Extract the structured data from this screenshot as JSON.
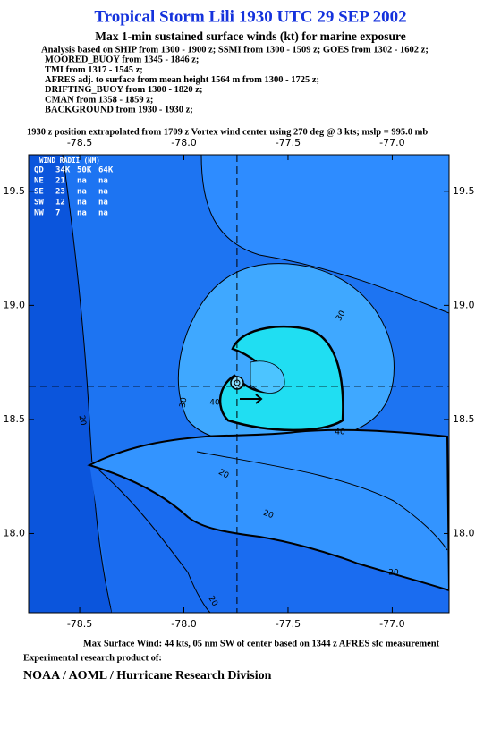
{
  "header": {
    "title": "Tropical Storm Lili 1930 UTC 29 SEP 2002",
    "subtitle": "Max 1-min sustained surface winds (kt) for marine exposure",
    "analysis": [
      "Analysis based on  SHIP from 1300 - 1900 z;  SSMI from 1300 - 1509 z;  GOES from 1302 - 1602 z;",
      "MOORED_BUOY from 1345 - 1846 z;",
      "TMI from 1317 - 1545 z;",
      "AFRES adj. to surface from mean height 1564 m from 1300 - 1725 z;",
      "DRIFTING_BUOY from 1300 - 1820 z;",
      "CMAN from 1358 - 1859 z;",
      "BACKGROUND from 1930 - 1930 z;"
    ],
    "position_note": "1930 z position extrapolated from 1709 z Vortex wind center using 270 deg @ 3 kts; mslp = 995.0 mb"
  },
  "map": {
    "xlim": [
      -78.745,
      -76.727
    ],
    "ylim": [
      17.653,
      19.66
    ],
    "xticks": [
      -78.5,
      {
        "value": -78,
        "label": "-78.0"
      },
      -77.5,
      {
        "value": -77,
        "label": "-77.0"
      }
    ],
    "yticks": [
      19.5,
      {
        "value": 19,
        "label": "19.0"
      },
      18.5,
      {
        "value": 18,
        "label": "18.0"
      }
    ],
    "center": {
      "lon": -77.745,
      "lat": 18.645
    },
    "contour_labels": [
      30,
      30,
      40,
      40,
      20,
      20,
      20,
      20,
      20
    ]
  },
  "wind_radii": {
    "title": "WIND RADII (NM)",
    "header": [
      "QD",
      "34K",
      "50K",
      "64K"
    ],
    "rows": [
      [
        "NE",
        21,
        "na",
        "na"
      ],
      [
        "SE",
        23,
        "na",
        "na"
      ],
      [
        "SW",
        12,
        "na",
        "na"
      ],
      [
        "NW",
        7,
        "na",
        "na"
      ]
    ]
  },
  "footer": {
    "max_wind": "Max Surface Wind: 44 kts, 05 nm SW of center based on 1344 z AFRES sfc measurement",
    "product": "Experimental research product of:",
    "organization": "NOAA / AOML / Hurricane Research Division"
  }
}
